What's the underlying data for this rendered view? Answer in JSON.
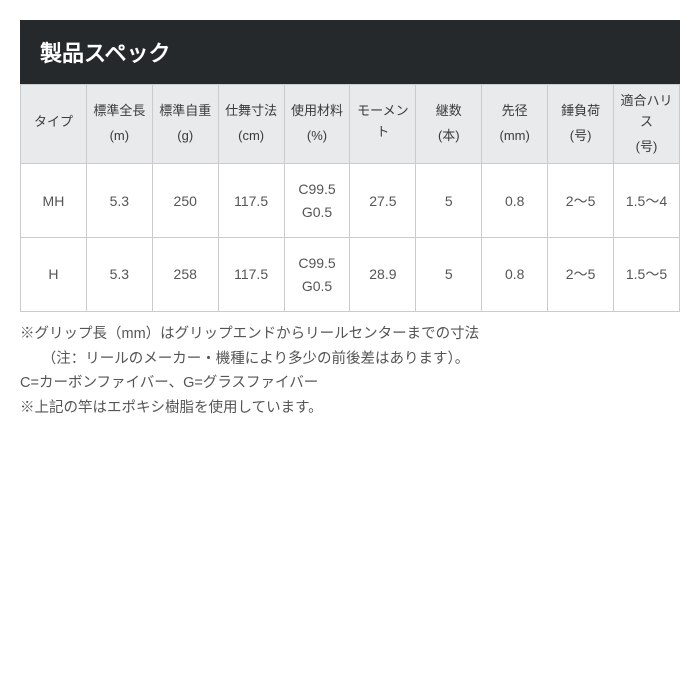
{
  "title": "製品スペック",
  "table": {
    "type": "table",
    "background_color": "#ffffff",
    "border_color": "#c9cccf",
    "header_bg": "#e8eaec",
    "title_bg": "#26292c",
    "title_color": "#ffffff",
    "header_fontsize": 13,
    "cell_fontsize": 14,
    "columns": [
      {
        "label": "タイプ",
        "unit": ""
      },
      {
        "label": "標準全長",
        "unit": "(m)"
      },
      {
        "label": "標準自重",
        "unit": "(g)"
      },
      {
        "label": "仕舞寸法",
        "unit": "(cm)"
      },
      {
        "label": "使用材料",
        "unit": "(%)"
      },
      {
        "label": "モーメント",
        "unit": ""
      },
      {
        "label": "継数",
        "unit": "(本)"
      },
      {
        "label": "先径",
        "unit": "(mm)"
      },
      {
        "label": "錘負荷",
        "unit": "(号)"
      },
      {
        "label": "適合ハリス",
        "unit": "(号)"
      }
    ],
    "rows": [
      [
        "MH",
        "5.3",
        "250",
        "117.5",
        "C99.5\nG0.5",
        "27.5",
        "5",
        "0.8",
        "2～5",
        "1.5～4"
      ],
      [
        "H",
        "5.3",
        "258",
        "117.5",
        "C99.5\nG0.5",
        "28.9",
        "5",
        "0.8",
        "2～5",
        "1.5～5"
      ]
    ]
  },
  "notes": {
    "line1": "※グリップ長（mm）はグリップエンドからリールセンターまでの寸法",
    "line2": "（注：リールのメーカー・機種により多少の前後差はあります）。",
    "line3": "C=カーボンファイバー、G=グラスファイバー",
    "line4": "※上記の竿はエポキシ樹脂を使用しています。"
  }
}
